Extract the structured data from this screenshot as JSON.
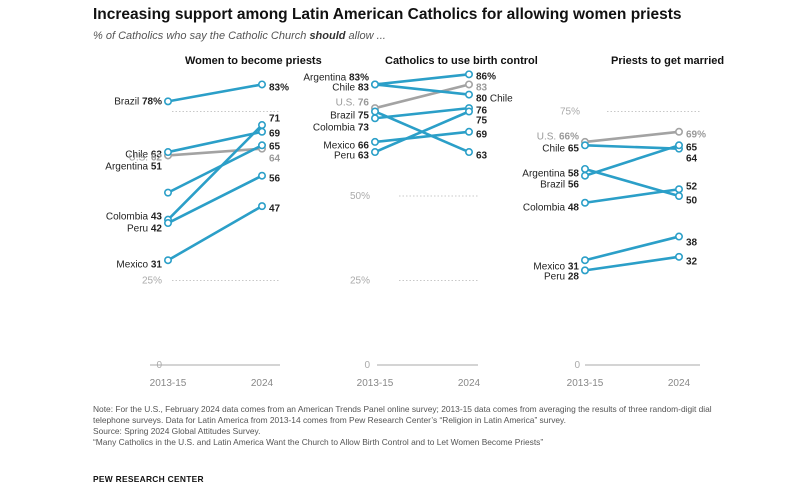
{
  "title": "Increasing support among Latin American Catholics for allowing women priests",
  "subtitle": {
    "before": "% of Catholics who say the Catholic Church ",
    "emphasis": "should",
    "after": " allow ..."
  },
  "colors": {
    "latin_america": "#2b9fc8",
    "us": "#a3a3a3",
    "label": "#222222",
    "muted": "#999999"
  },
  "chart_data": [
    {
      "type": "line",
      "title": "Women to become priests",
      "x": [
        "2013-15",
        "2024"
      ],
      "y_ticks": [
        "0",
        "25%"
      ],
      "ref_lines": [
        25,
        75
      ],
      "series": [
        {
          "name": "Brazil",
          "values": [
            78,
            83
          ],
          "color": "latin_america",
          "start_label": "Brazil 78%",
          "end_label": "83%"
        },
        {
          "name": "Chile",
          "values": [
            63,
            69
          ],
          "color": "latin_america",
          "start_label": "Chile 63",
          "end_label": "69"
        },
        {
          "name": "U.S.",
          "values": [
            62,
            64
          ],
          "color": "us",
          "start_label": "U.S. 62",
          "end_label": "64"
        },
        {
          "name": "Argentina",
          "values": [
            51,
            65
          ],
          "color": "latin_america",
          "start_label": "Argentina 51",
          "end_label": "65"
        },
        {
          "name": "Colombia",
          "values": [
            43,
            71
          ],
          "color": "latin_america",
          "start_label": "Colombia 43",
          "end_label": "71"
        },
        {
          "name": "Peru",
          "values": [
            42,
            56
          ],
          "color": "latin_america",
          "start_label": "Peru 42",
          "end_label": "56"
        },
        {
          "name": "Mexico",
          "values": [
            31,
            47
          ],
          "color": "latin_america",
          "start_label": "Mexico 31",
          "end_label": "47"
        }
      ]
    },
    {
      "type": "line",
      "title": "Catholics to use birth control",
      "x": [
        "2013-15",
        "2024"
      ],
      "y_ticks": [
        "0",
        "25%",
        "50%"
      ],
      "ref_lines": [
        25,
        50
      ],
      "series": [
        {
          "name": "Argentina",
          "values": [
            83,
            86
          ],
          "color": "latin_america",
          "start_label": "Argentina 83%",
          "end_label": "86%"
        },
        {
          "name": "Chile",
          "values": [
            83,
            80
          ],
          "color": "latin_america",
          "start_label": "Chile 83",
          "end_label": "80 Chile"
        },
        {
          "name": "U.S.",
          "values": [
            76,
            83
          ],
          "color": "us",
          "start_label": "U.S. 76",
          "end_label": "83"
        },
        {
          "name": "Brazil",
          "values": [
            75,
            63
          ],
          "color": "latin_america",
          "start_label": "Brazil 75",
          "end_label": "63"
        },
        {
          "name": "Colombia",
          "values": [
            73,
            76
          ],
          "color": "latin_america",
          "start_label": "Colombia 73",
          "end_label": "76"
        },
        {
          "name": "Mexico",
          "values": [
            66,
            69
          ],
          "color": "latin_america",
          "start_label": "Mexico 66",
          "end_label": "69"
        },
        {
          "name": "Peru",
          "values": [
            63,
            75
          ],
          "color": "latin_america",
          "start_label": "Peru 63",
          "end_label": "75"
        }
      ]
    },
    {
      "type": "line",
      "title": "Priests to get married",
      "x": [
        "2013-15",
        "2024"
      ],
      "y_ticks": [
        "0",
        "75%"
      ],
      "ref_lines": [
        75
      ],
      "series": [
        {
          "name": "U.S.",
          "values": [
            66,
            69
          ],
          "color": "us",
          "start_label": "U.S. 66%",
          "end_label": "69%"
        },
        {
          "name": "Chile",
          "values": [
            65,
            64
          ],
          "color": "latin_america",
          "start_label": "Chile 65",
          "end_label": "64"
        },
        {
          "name": "Argentina",
          "values": [
            58,
            50
          ],
          "color": "latin_america",
          "start_label": "Argentina 58",
          "end_label": "50"
        },
        {
          "name": "Brazil",
          "values": [
            56,
            65
          ],
          "color": "latin_america",
          "start_label": "Brazil 56",
          "end_label": "65"
        },
        {
          "name": "Colombia",
          "values": [
            48,
            52
          ],
          "color": "latin_america",
          "start_label": "Colombia 48",
          "end_label": "52"
        },
        {
          "name": "Mexico",
          "values": [
            31,
            38
          ],
          "color": "latin_america",
          "start_label": "Mexico 31",
          "end_label": "38"
        },
        {
          "name": "Peru",
          "values": [
            28,
            32
          ],
          "color": "latin_america",
          "start_label": "Peru 28",
          "end_label": "32"
        }
      ]
    }
  ],
  "notes": [
    "Note: For the U.S., February 2024 data comes from an American Trends Panel online survey; 2013-15 data comes from averaging the results of three random-digit dial telephone surveys. Data for Latin America from 2013-14 comes from Pew Research Center’s “Religion in Latin America” survey.",
    "Source: Spring 2024 Global Attitudes Survey.",
    "“Many Catholics in the U.S. and Latin America Want the Church to Allow Birth Control and to Let Women Become Priests”"
  ],
  "brand": "PEW RESEARCH CENTER"
}
